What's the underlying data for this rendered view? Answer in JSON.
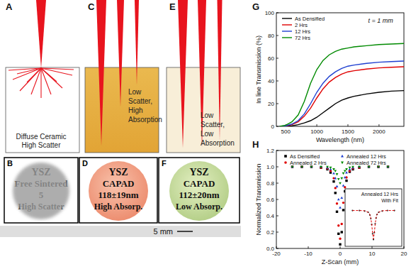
{
  "diagram": {
    "panels": [
      {
        "letter": "A",
        "text": [
          "Diffuse Ceramic",
          "High Scatter"
        ]
      },
      {
        "letter": "C",
        "text": [
          "Low",
          "Scatter,",
          "High",
          "Absorption"
        ]
      },
      {
        "letter": "E",
        "text": [
          "Low",
          "Scatter,",
          "Low",
          "Absorption"
        ]
      }
    ],
    "photos": [
      {
        "letter": "B",
        "text": [
          "YSZ",
          "Free Sintered",
          "5",
          "High Scatter"
        ]
      },
      {
        "letter": "D",
        "text": [
          "YSZ",
          "CAPAD",
          "118±19nm",
          "High Absorp."
        ]
      },
      {
        "letter": "F",
        "text": [
          "YSZ",
          "CAPAD",
          "112±20nm",
          "Low Absorp."
        ]
      }
    ],
    "scale_bar": "5 mm",
    "chart_letters": [
      "G",
      "H"
    ]
  },
  "chart_data": [
    {
      "type": "line",
      "xlabel": "Wavelength (nm)",
      "ylabel": "In line Transmission (%)",
      "annotations": [
        "t = 1 mm"
      ],
      "legend": "top-left",
      "x": [
        400,
        500,
        600,
        700,
        800,
        900,
        1000,
        1100,
        1200,
        1300,
        1400,
        1500,
        1600,
        1800,
        2000,
        2200,
        2400
      ],
      "series": [
        {
          "name": "As Densified",
          "color": "#000000",
          "values": [
            0,
            0,
            0.5,
            1.5,
            3,
            5,
            8,
            12,
            16,
            20,
            23,
            25,
            26.5,
            28.5,
            30,
            31,
            31.5
          ]
        },
        {
          "name": "2 Hrs",
          "color": "#e00000",
          "values": [
            0,
            0.3,
            1.5,
            4,
            9,
            16,
            25,
            33,
            39,
            43,
            46,
            48,
            49,
            50.5,
            51.5,
            52,
            52.5
          ]
        },
        {
          "name": "12 Hrs",
          "color": "#1f3fd0",
          "values": [
            0,
            0.5,
            2,
            5,
            11,
            20,
            30,
            38,
            44,
            48,
            51,
            53,
            54,
            55.5,
            56.5,
            57,
            57.5
          ]
        },
        {
          "name": "72 Hrs",
          "color": "#008a00",
          "values": [
            0,
            1,
            4,
            10,
            22,
            38,
            50,
            58,
            63,
            66,
            68,
            69,
            70,
            71,
            72,
            72.5,
            73
          ]
        }
      ],
      "xlim": [
        350,
        2400
      ],
      "xticks": [
        500,
        1000,
        1500,
        2000
      ],
      "ylim": [
        0,
        100
      ],
      "yticks": [
        0,
        20,
        40,
        60,
        80,
        100
      ]
    },
    {
      "type": "scatter",
      "xlabel": "Z-Scan (mm)",
      "ylabel": "Normalized Transmission",
      "legend": "top",
      "x": [
        -15,
        -12,
        -9,
        -6,
        -4,
        -3,
        -2,
        -1.5,
        -1,
        -0.5,
        0,
        0.5,
        1,
        1.5,
        2,
        3,
        4,
        6,
        9,
        12,
        15
      ],
      "series": [
        {
          "name": "As Densified",
          "color": "#000000",
          "marker": "square",
          "values": [
            1,
            1,
            1,
            0.99,
            0.97,
            0.93,
            0.82,
            0.68,
            0.45,
            0.18,
            0.05,
            0.2,
            0.47,
            0.7,
            0.83,
            0.94,
            0.97,
            0.99,
            1,
            1,
            1
          ]
        },
        {
          "name": "Annealed 2 Hrs",
          "color": "#e00000",
          "marker": "circle",
          "values": [
            1,
            1,
            1,
            0.99,
            0.98,
            0.95,
            0.86,
            0.74,
            0.55,
            0.28,
            0.12,
            0.3,
            0.56,
            0.75,
            0.87,
            0.95,
            0.98,
            0.99,
            1,
            1,
            1
          ]
        },
        {
          "name": "Annealed 12 Hrs",
          "color": "#1f3fd0",
          "marker": "triangle",
          "values": [
            1,
            1,
            1,
            1,
            0.99,
            0.97,
            0.92,
            0.86,
            0.76,
            0.6,
            0.5,
            0.62,
            0.77,
            0.87,
            0.93,
            0.97,
            0.99,
            1,
            1,
            1,
            1
          ]
        },
        {
          "name": "Annealed 72 Hrs",
          "color": "#008a00",
          "marker": "triangle-down",
          "values": [
            1,
            1,
            1,
            1,
            1,
            0.99,
            0.97,
            0.95,
            0.91,
            0.85,
            0.8,
            0.86,
            0.92,
            0.95,
            0.97,
            0.99,
            1,
            1,
            1,
            1,
            1
          ]
        }
      ],
      "xlim": [
        -20,
        20
      ],
      "xticks": [
        -20,
        -10,
        0,
        10,
        20
      ],
      "ylim": [
        0,
        1.2
      ],
      "yticks": [
        {
          "value": 0,
          "label": "0.0"
        },
        {
          "value": 0.2,
          "label": "0.2"
        },
        {
          "value": 0.4,
          "label": "0.4"
        },
        {
          "value": 0.6,
          "label": "0.6"
        },
        {
          "value": 0.8,
          "label": "0.8"
        },
        {
          "value": 1,
          "label": "1.0"
        },
        {
          "value": 1.2,
          "label": "1.2"
        }
      ]
    },
    {
      "type": "line",
      "title": "Annealed 12 Hrs With Fit",
      "tick_labels": false,
      "x": [
        -12,
        -8,
        -5,
        -3,
        -2,
        -1.5,
        -1,
        -0.5,
        0,
        0.5,
        1,
        1.5,
        2,
        3,
        5,
        8,
        12
      ],
      "series": [
        {
          "type": "scatter",
          "marker": "circle",
          "color": "#222222",
          "values": [
            1,
            1,
            0.99,
            0.97,
            0.92,
            0.86,
            0.76,
            0.6,
            0.5,
            0.62,
            0.77,
            0.87,
            0.93,
            0.97,
            0.99,
            1,
            1
          ]
        },
        {
          "type": "line",
          "line_style": "dashed",
          "color": "#e00000",
          "values": [
            1,
            1,
            0.995,
            0.97,
            0.93,
            0.87,
            0.77,
            0.61,
            0.51,
            0.61,
            0.77,
            0.87,
            0.93,
            0.97,
            0.995,
            1,
            1
          ]
        }
      ],
      "xlim": [
        -15,
        15
      ],
      "ylim": [
        0.42,
        1.08
      ]
    }
  ]
}
